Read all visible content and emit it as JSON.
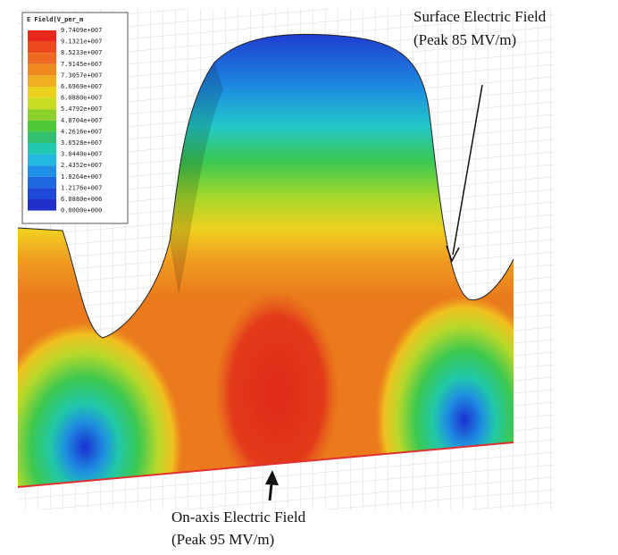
{
  "legend": {
    "title": "E Field[V_per_m",
    "labels": [
      "9.7409e+007",
      "9.1321e+007",
      "8.5233e+007",
      "7.9145e+007",
      "7.3057e+007",
      "6.6969e+007",
      "6.0880e+007",
      "5.4792e+007",
      "4.8704e+007",
      "4.2616e+007",
      "3.6528e+007",
      "3.0440e+007",
      "2.4352e+007",
      "1.8264e+007",
      "1.2176e+007",
      "6.0880e+006",
      "0.0000e+000"
    ]
  },
  "annotations": {
    "surface": {
      "line1": "Surface Electric Field",
      "line2": "(Peak 85 MV/m)"
    },
    "on_axis": {
      "line1": "On-axis Electric Field",
      "line2": "(Peak 95 MV/m)"
    }
  }
}
